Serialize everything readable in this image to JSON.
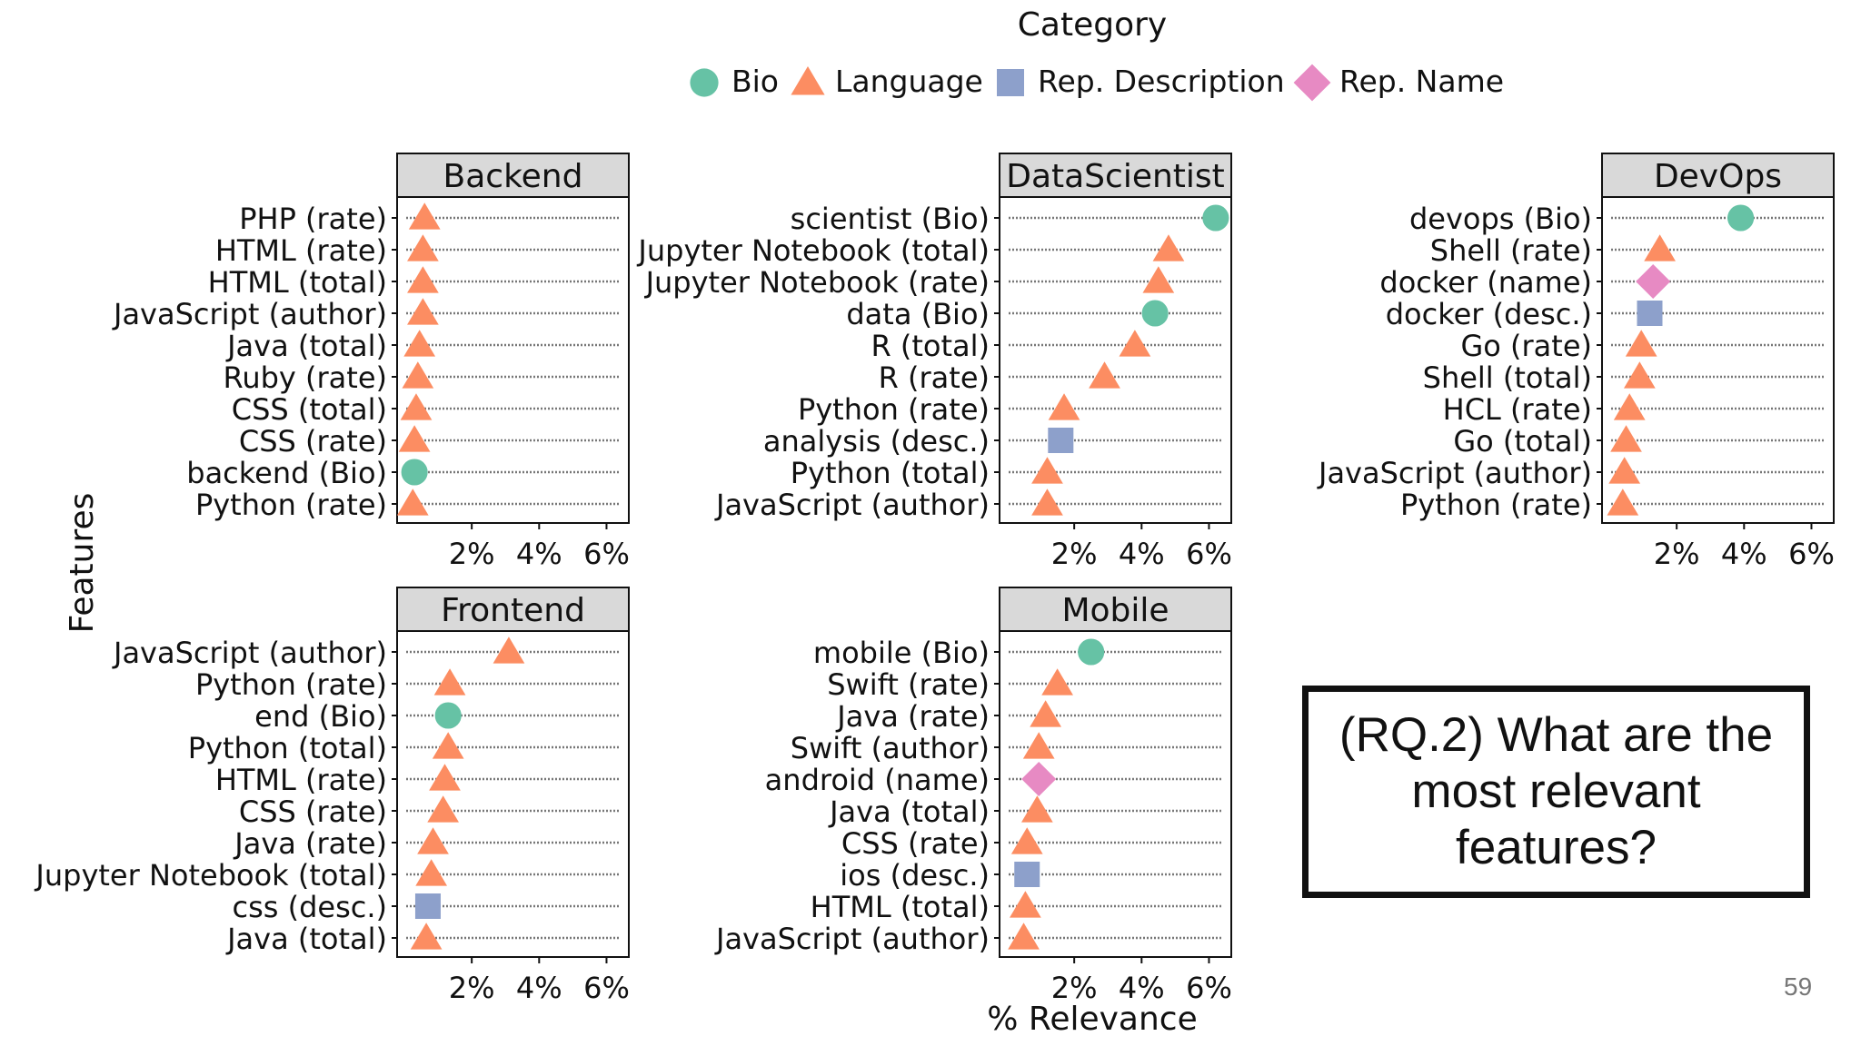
{
  "slide": {
    "question": "(RQ.2) What are the most relevant features?",
    "page_number": "59"
  },
  "chart_data": {
    "type": "scatter",
    "legend_title": "Category",
    "legend_placement": "top-center",
    "xlabel": "% Relevance",
    "ylabel": "Features",
    "xlim": [
      0,
      6.5
    ],
    "xticks": [
      2,
      4,
      6
    ],
    "xtick_labels": [
      "2%",
      "4%",
      "6%"
    ],
    "categories": [
      {
        "name": "Bio",
        "marker": "circle",
        "color": "#66c2a5"
      },
      {
        "name": "Language",
        "marker": "triangle",
        "color": "#fc8d62"
      },
      {
        "name": "Rep. Description",
        "marker": "square",
        "color": "#8da0cb"
      },
      {
        "name": "Rep. Name",
        "marker": "diamond",
        "color": "#e78ac3"
      }
    ],
    "panels": [
      {
        "title": "Backend",
        "points": [
          {
            "feature": "PHP (rate)",
            "category": "Language",
            "value": 0.6
          },
          {
            "feature": "HTML (rate)",
            "category": "Language",
            "value": 0.55
          },
          {
            "feature": "HTML (total)",
            "category": "Language",
            "value": 0.55
          },
          {
            "feature": "JavaScript (author)",
            "category": "Language",
            "value": 0.55
          },
          {
            "feature": "Java (total)",
            "category": "Language",
            "value": 0.45
          },
          {
            "feature": "Ruby (rate)",
            "category": "Language",
            "value": 0.4
          },
          {
            "feature": "CSS (total)",
            "category": "Language",
            "value": 0.35
          },
          {
            "feature": "CSS (rate)",
            "category": "Language",
            "value": 0.3
          },
          {
            "feature": "backend (Bio)",
            "category": "Bio",
            "value": 0.3
          },
          {
            "feature": "Python (rate)",
            "category": "Language",
            "value": 0.25
          }
        ]
      },
      {
        "title": "DataScientist",
        "points": [
          {
            "feature": "scientist (Bio)",
            "category": "Bio",
            "value": 6.2
          },
          {
            "feature": "Jupyter Notebook (total)",
            "category": "Language",
            "value": 4.8
          },
          {
            "feature": "Jupyter Notebook (rate)",
            "category": "Language",
            "value": 4.5
          },
          {
            "feature": "data (Bio)",
            "category": "Bio",
            "value": 4.4
          },
          {
            "feature": "R (total)",
            "category": "Language",
            "value": 3.8
          },
          {
            "feature": "R (rate)",
            "category": "Language",
            "value": 2.9
          },
          {
            "feature": "Python (rate)",
            "category": "Language",
            "value": 1.7
          },
          {
            "feature": "analysis (desc.)",
            "category": "Rep. Description",
            "value": 1.6
          },
          {
            "feature": "Python (total)",
            "category": "Language",
            "value": 1.2
          },
          {
            "feature": "JavaScript (author)",
            "category": "Language",
            "value": 1.2
          }
        ]
      },
      {
        "title": "DevOps",
        "points": [
          {
            "feature": "devops (Bio)",
            "category": "Bio",
            "value": 3.9
          },
          {
            "feature": "Shell (rate)",
            "category": "Language",
            "value": 1.5
          },
          {
            "feature": "docker (name)",
            "category": "Rep. Name",
            "value": 1.3
          },
          {
            "feature": "docker (desc.)",
            "category": "Rep. Description",
            "value": 1.2
          },
          {
            "feature": "Go (rate)",
            "category": "Language",
            "value": 0.95
          },
          {
            "feature": "Shell (total)",
            "category": "Language",
            "value": 0.9
          },
          {
            "feature": "HCL (rate)",
            "category": "Language",
            "value": 0.6
          },
          {
            "feature": "Go (total)",
            "category": "Language",
            "value": 0.5
          },
          {
            "feature": "JavaScript (author)",
            "category": "Language",
            "value": 0.45
          },
          {
            "feature": "Python (rate)",
            "category": "Language",
            "value": 0.4
          }
        ]
      },
      {
        "title": "Frontend",
        "points": [
          {
            "feature": "JavaScript (author)",
            "category": "Language",
            "value": 3.1
          },
          {
            "feature": "Python (rate)",
            "category": "Language",
            "value": 1.35
          },
          {
            "feature": "end (Bio)",
            "category": "Bio",
            "value": 1.3
          },
          {
            "feature": "Python (total)",
            "category": "Language",
            "value": 1.3
          },
          {
            "feature": "HTML (rate)",
            "category": "Language",
            "value": 1.2
          },
          {
            "feature": "CSS (rate)",
            "category": "Language",
            "value": 1.15
          },
          {
            "feature": "Java (rate)",
            "category": "Language",
            "value": 0.85
          },
          {
            "feature": "Jupyter Notebook (total)",
            "category": "Language",
            "value": 0.8
          },
          {
            "feature": "css (desc.)",
            "category": "Rep. Description",
            "value": 0.7
          },
          {
            "feature": "Java (total)",
            "category": "Language",
            "value": 0.65
          }
        ]
      },
      {
        "title": "Mobile",
        "points": [
          {
            "feature": "mobile (Bio)",
            "category": "Bio",
            "value": 2.5
          },
          {
            "feature": "Swift (rate)",
            "category": "Language",
            "value": 1.5
          },
          {
            "feature": "Java (rate)",
            "category": "Language",
            "value": 1.15
          },
          {
            "feature": "Swift (author)",
            "category": "Language",
            "value": 0.95
          },
          {
            "feature": "android (name)",
            "category": "Rep. Name",
            "value": 0.95
          },
          {
            "feature": "Java (total)",
            "category": "Language",
            "value": 0.9
          },
          {
            "feature": "CSS (rate)",
            "category": "Language",
            "value": 0.6
          },
          {
            "feature": "ios (desc.)",
            "category": "Rep. Description",
            "value": 0.6
          },
          {
            "feature": "HTML (total)",
            "category": "Language",
            "value": 0.55
          },
          {
            "feature": "JavaScript (author)",
            "category": "Language",
            "value": 0.5
          }
        ]
      }
    ]
  }
}
